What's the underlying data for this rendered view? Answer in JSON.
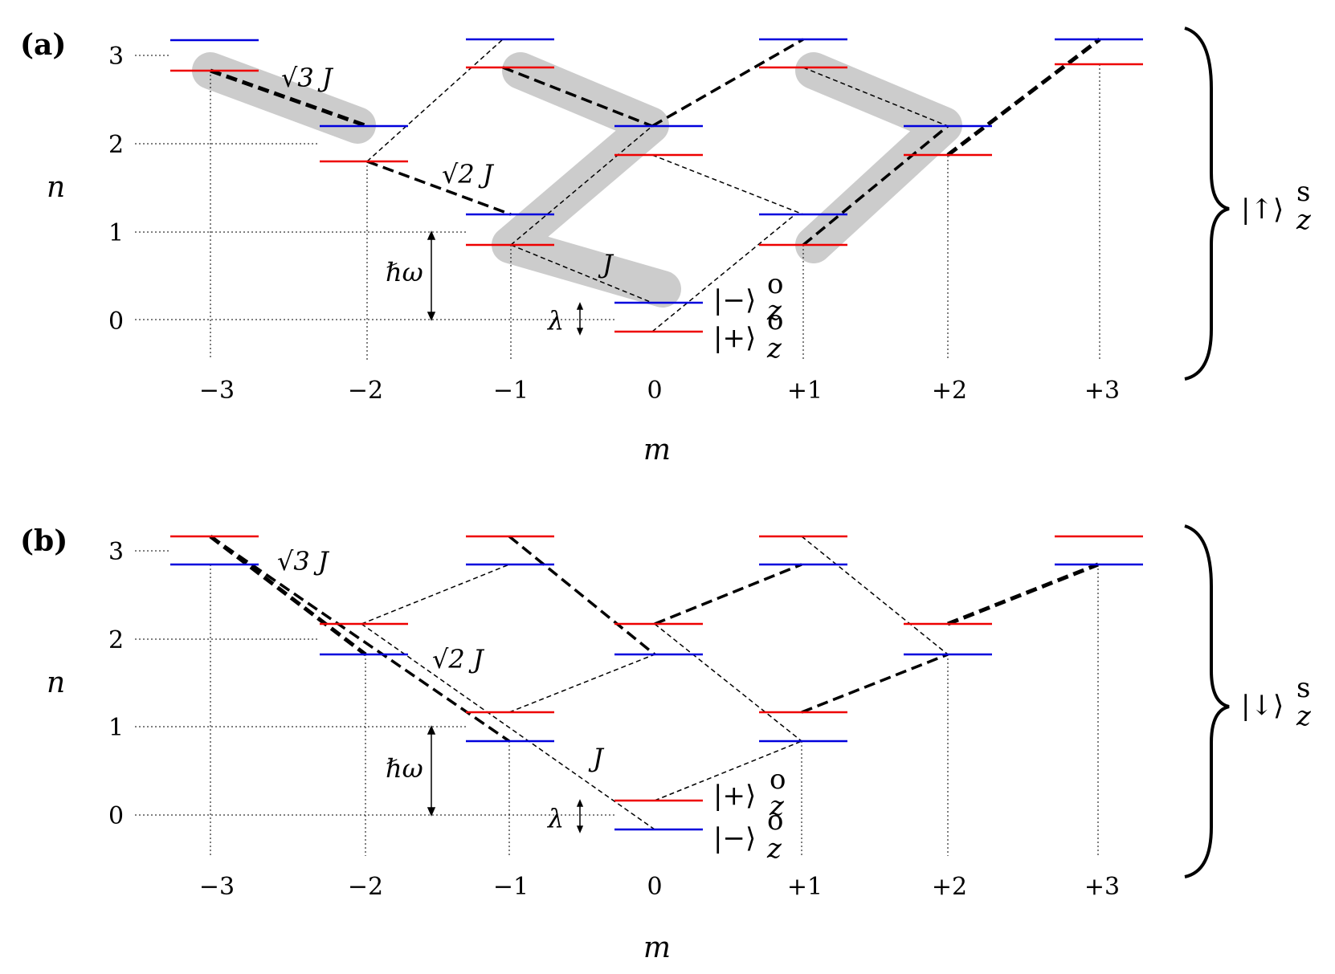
{
  "panels": [
    {
      "id": "a",
      "label": "(a)",
      "y_axis": {
        "label": "n",
        "ticks": [
          "0",
          "1",
          "2",
          "3"
        ]
      },
      "x_axis": {
        "label": "m",
        "ticks": [
          "−3",
          "−2",
          "−1",
          "0",
          "+1",
          "+2",
          "+3"
        ]
      },
      "spin_label": {
        "ket": "|↑⟩",
        "sup": "s",
        "sub": "z"
      },
      "annotations": {
        "coupling_sqrt3": "√3 J",
        "coupling_sqrt2": "√2 J",
        "coupling_1": "J",
        "hbar_omega": "ℏω",
        "lambda": "λ"
      },
      "state_labels": [
        {
          "ket": "|−⟩",
          "sup": "o",
          "sub": "z"
        },
        {
          "ket": "|+⟩",
          "sup": "o",
          "sub": "z"
        }
      ],
      "colors": {
        "upper_level": "#0000dd",
        "lower_level": "#ee0000",
        "highlight": "#cccccc"
      }
    },
    {
      "id": "b",
      "label": "(b)",
      "y_axis": {
        "label": "n",
        "ticks": [
          "0",
          "1",
          "2",
          "3"
        ]
      },
      "x_axis": {
        "label": "m",
        "ticks": [
          "−3",
          "−2",
          "−1",
          "0",
          "+1",
          "+2",
          "+3"
        ]
      },
      "spin_label": {
        "ket": "|↓⟩",
        "sup": "s",
        "sub": "z"
      },
      "annotations": {
        "coupling_sqrt3": "√3 J",
        "coupling_sqrt2": "√2 J",
        "coupling_1": "J",
        "hbar_omega": "ℏω",
        "lambda": "λ"
      },
      "state_labels": [
        {
          "ket": "|+⟩",
          "sup": "o",
          "sub": "z"
        },
        {
          "ket": "|−⟩",
          "sup": "o",
          "sub": "z"
        }
      ],
      "colors": {
        "upper_level": "#ee0000",
        "lower_level": "#0000dd"
      }
    }
  ]
}
